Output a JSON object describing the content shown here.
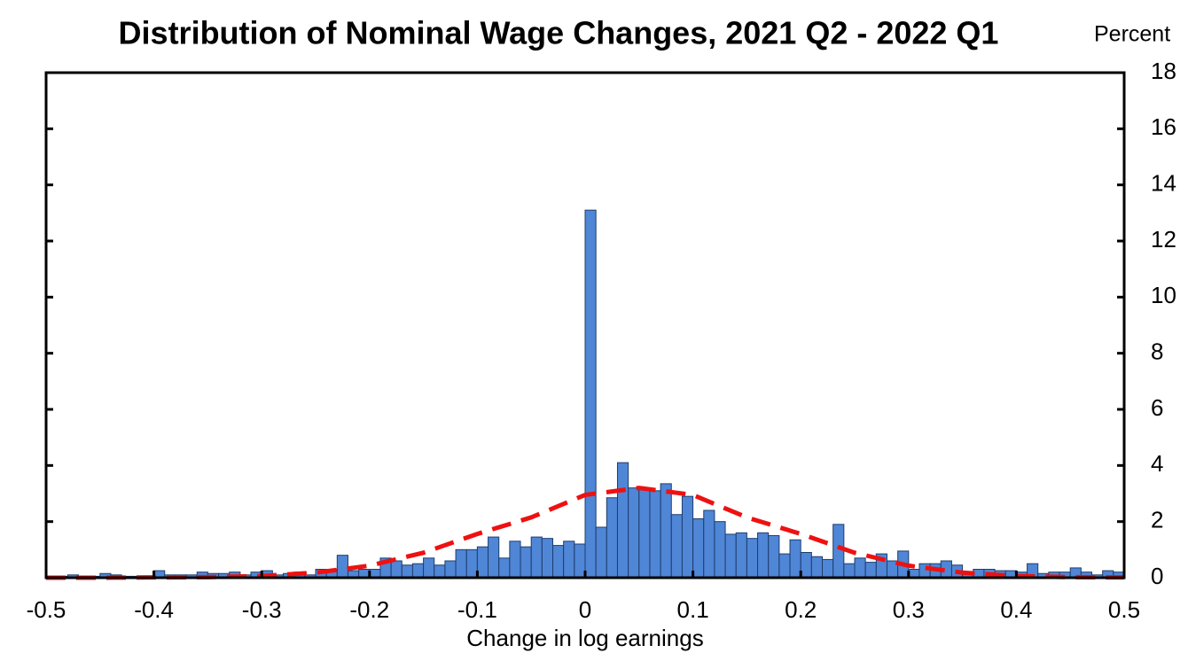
{
  "chart_data": {
    "type": "histogram",
    "title": "Distribution of Nominal Wage Changes, 2021 Q2 - 2022 Q1",
    "x_label": "Change in log earnings",
    "y_label": "Percent",
    "color": "#4f86d6",
    "bins": [
      -0.5,
      -0.49,
      -0.48,
      -0.47,
      -0.46,
      -0.45,
      -0.44,
      -0.43,
      -0.42,
      -0.41,
      -0.4,
      -0.39,
      -0.38,
      -0.37,
      -0.36,
      -0.35,
      -0.34,
      -0.33,
      -0.32,
      -0.31,
      -0.3,
      -0.29,
      -0.28,
      -0.27,
      -0.26,
      -0.25,
      -0.24,
      -0.23,
      -0.22,
      -0.21,
      -0.2,
      -0.19,
      -0.18,
      -0.17,
      -0.16,
      -0.15,
      -0.14,
      -0.13,
      -0.12,
      -0.11,
      -0.1,
      -0.09,
      -0.08,
      -0.07,
      -0.06,
      -0.05,
      -0.04,
      -0.03,
      -0.02,
      -0.01,
      0,
      0.01,
      0.02,
      0.03,
      0.04,
      0.05,
      0.06,
      0.07,
      0.08,
      0.09,
      0.1,
      0.11,
      0.12,
      0.13,
      0.14,
      0.15,
      0.16,
      0.17,
      0.18,
      0.19,
      0.2,
      0.21,
      0.22,
      0.23,
      0.24,
      0.25,
      0.26,
      0.27,
      0.28,
      0.29,
      0.3,
      0.31,
      0.32,
      0.33,
      0.34,
      0.35,
      0.36,
      0.37,
      0.38,
      0.39,
      0.4,
      0.41,
      0.42,
      0.43,
      0.44,
      0.45,
      0.46,
      0.47,
      0.48,
      0.49,
      0.5
    ],
    "values": [
      0.05,
      0.05,
      0.1,
      0.05,
      0.05,
      0.15,
      0.1,
      0.05,
      0.05,
      0.05,
      0.25,
      0.1,
      0.1,
      0.1,
      0.2,
      0.15,
      0.15,
      0.2,
      0.1,
      0.2,
      0.25,
      0.1,
      0.15,
      0.2,
      0.1,
      0.3,
      0.3,
      0.8,
      0.25,
      0.3,
      0.3,
      0.7,
      0.6,
      0.45,
      0.5,
      0.7,
      0.45,
      0.6,
      1.0,
      1.0,
      1.1,
      1.45,
      0.7,
      1.3,
      1.1,
      1.45,
      1.4,
      1.15,
      1.3,
      1.2,
      13.1,
      1.8,
      2.85,
      4.1,
      3.2,
      3.2,
      3.1,
      3.35,
      2.25,
      2.9,
      2.1,
      2.4,
      2.0,
      1.55,
      1.6,
      1.4,
      1.6,
      1.5,
      0.85,
      1.35,
      0.9,
      0.75,
      0.65,
      1.9,
      0.5,
      0.7,
      0.55,
      0.85,
      0.6,
      0.95,
      0.3,
      0.5,
      0.5,
      0.6,
      0.45,
      0.2,
      0.3,
      0.3,
      0.25,
      0.25,
      0.2,
      0.5,
      0.15,
      0.2,
      0.2,
      0.35,
      0.2,
      0.1,
      0.25,
      0.2
    ],
    "curve": {
      "color": "#ee1111",
      "x": [
        -0.5,
        -0.45,
        -0.4,
        -0.35,
        -0.3,
        -0.25,
        -0.2,
        -0.15,
        -0.1,
        -0.05,
        0,
        0.05,
        0.1,
        0.15,
        0.2,
        0.25,
        0.3,
        0.35,
        0.4,
        0.45,
        0.5
      ],
      "values": [
        0,
        0,
        0.01,
        0.02,
        0.06,
        0.18,
        0.43,
        0.89,
        1.56,
        2.15,
        2.95,
        3.2,
        2.95,
        2.15,
        1.56,
        0.89,
        0.43,
        0.18,
        0.06,
        0.02,
        0.01
      ]
    },
    "xlim": [
      -0.5,
      0.5
    ],
    "xticks": [
      -0.5,
      -0.4,
      -0.3,
      -0.2,
      -0.1,
      0,
      0.1,
      0.2,
      0.3,
      0.4,
      0.5
    ],
    "ylim": [
      0,
      18
    ],
    "yticks": [
      0,
      2,
      4,
      6,
      8,
      10,
      12,
      14,
      16,
      18
    ],
    "y_axis_side": "right"
  }
}
